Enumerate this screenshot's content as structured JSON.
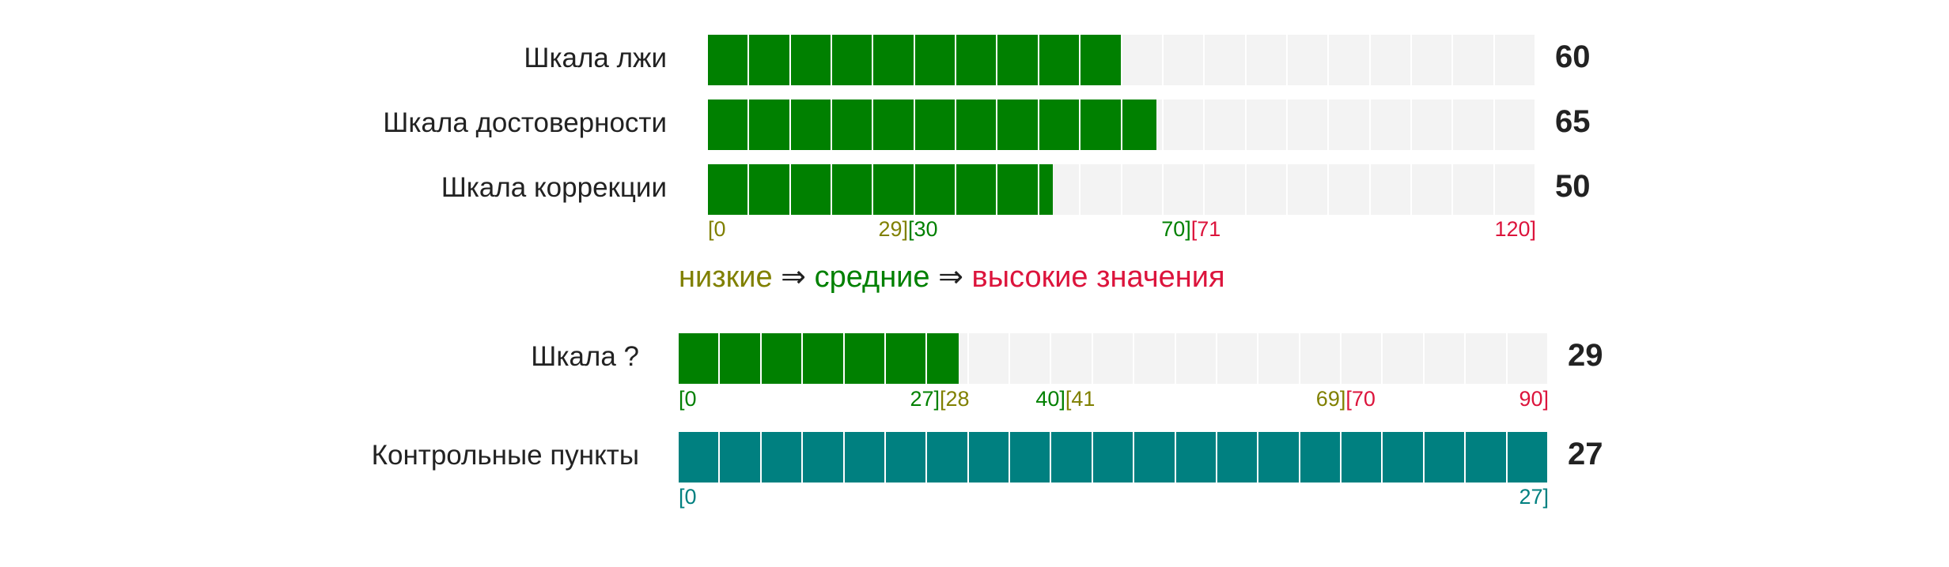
{
  "colors": {
    "green": "#008000",
    "teal": "#008080",
    "track": "#f3f3f3",
    "low": "#808000",
    "mid": "#008000",
    "high": "#dc143c",
    "text": "#222222"
  },
  "legend": {
    "low": "низкие",
    "arrow1": " ⇒ ",
    "mid": "средние",
    "arrow2": " ⇒ ",
    "high": "высокие значения"
  },
  "chart_data": [
    {
      "type": "bar",
      "orientation": "horizontal",
      "max": 120,
      "segments": 20,
      "bar_color": "#008000",
      "bars": [
        {
          "label": "Шкала лжи",
          "value": 60,
          "value_label": "60"
        },
        {
          "label": "Шкала достоверности",
          "value": 65,
          "value_label": "65"
        },
        {
          "label": "Шкала коррекции",
          "value": 50,
          "value_label": "50"
        }
      ],
      "range_labels": [
        {
          "text": "[0",
          "at": 0,
          "align": "left",
          "color": "#808000"
        },
        {
          "text": "29]",
          "at": 29,
          "align": "right",
          "color": "#808000"
        },
        {
          "text": "[30",
          "at": 29,
          "align": "left",
          "color": "#008000"
        },
        {
          "text": "70]",
          "at": 70,
          "align": "right",
          "color": "#008000"
        },
        {
          "text": "[71",
          "at": 70,
          "align": "left",
          "color": "#dc143c"
        },
        {
          "text": "120]",
          "at": 120,
          "align": "right",
          "color": "#dc143c"
        }
      ]
    },
    {
      "type": "bar",
      "orientation": "horizontal",
      "max": 90,
      "segments": 21,
      "bar_color": "#008000",
      "bars": [
        {
          "label": "Шкала ?",
          "value": 29,
          "value_label": "29"
        }
      ],
      "range_labels": [
        {
          "text": "[0",
          "at": 0,
          "align": "left",
          "color": "#008000"
        },
        {
          "text": "27]",
          "at": 27,
          "align": "right",
          "color": "#008000"
        },
        {
          "text": "[28",
          "at": 27,
          "align": "left",
          "color": "#808000"
        },
        {
          "text": "40]",
          "at": 40,
          "align": "right",
          "color": "#008000"
        },
        {
          "text": "[41",
          "at": 40,
          "align": "left",
          "color": "#808000"
        },
        {
          "text": "69]",
          "at": 69,
          "align": "right",
          "color": "#808000"
        },
        {
          "text": "[70",
          "at": 69,
          "align": "left",
          "color": "#dc143c"
        },
        {
          "text": "90]",
          "at": 90,
          "align": "right",
          "color": "#dc143c"
        }
      ]
    },
    {
      "type": "bar",
      "orientation": "horizontal",
      "max": 27,
      "segments": 21,
      "bar_color": "#008080",
      "bars": [
        {
          "label": "Контрольные пункты",
          "value": 27,
          "value_label": "27"
        }
      ],
      "range_labels": [
        {
          "text": "[0",
          "at": 0,
          "align": "left",
          "color": "#008080"
        },
        {
          "text": "27]",
          "at": 27,
          "align": "right",
          "color": "#008080"
        }
      ]
    }
  ]
}
